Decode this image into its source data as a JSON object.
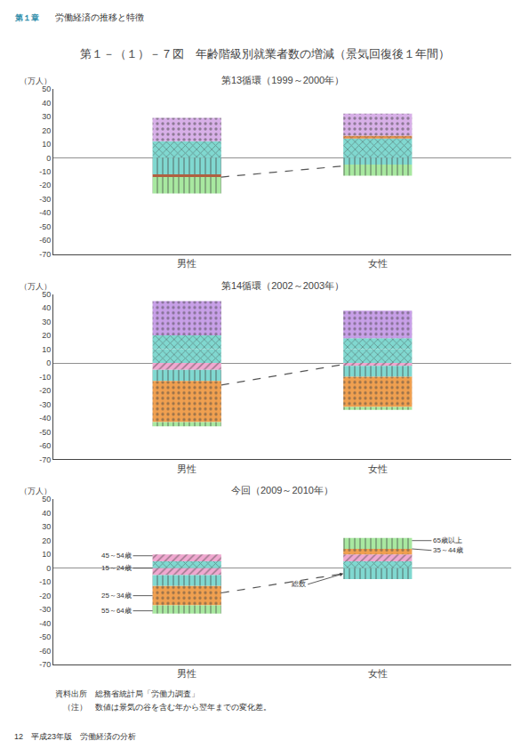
{
  "title": "第１－（１）－７図　年齢階級別就業者数の増減（景気回復後１年間）",
  "header": [
    "第１章",
    "労働経済の推移と特徴"
  ],
  "notes": [
    "資料出所　総務省統計局「労働力調査」",
    "　（注）　数値は景気の谷を含む年から翌年までの変化差。"
  ],
  "footer": "12　平成23年版　労働経済の分析",
  "chart_data": [
    {
      "type": "bar",
      "title": "第13循環（1999～2000年）",
      "ylabel": "（万人）",
      "stacked": true,
      "grid": false,
      "categories": [
        "男性",
        "女性"
      ],
      "ylim": [
        -70,
        50
      ],
      "yticks": [
        -70,
        -60,
        -50,
        -40,
        -30,
        -20,
        -10,
        0,
        10,
        20,
        30,
        40,
        50
      ],
      "series": [
        {
          "color": "#80d8d0",
          "marker": "crosshatch",
          "values": [
            12,
            14
          ]
        },
        {
          "color": "#e09050",
          "marker": "crosshatch",
          "values": [
            null,
            2
          ]
        },
        {
          "color": "#d8b0e8",
          "marker": "dots",
          "values": [
            17,
            16
          ]
        },
        {
          "color": "#80d8d0",
          "marker": "vertical",
          "values": [
            -12,
            -5
          ]
        },
        {
          "color": "#b06040",
          "values": [
            -2,
            null
          ]
        },
        {
          "color": "#a8e8a0",
          "marker": "vertical",
          "values": [
            -12,
            -8
          ]
        },
        {
          "type": "line",
          "line_style": "dashed",
          "color": "#555555",
          "values": [
            -14,
            -6
          ]
        }
      ]
    },
    {
      "type": "bar",
      "title": "第14循環（2002～2003年）",
      "ylabel": "（万人）",
      "stacked": true,
      "grid": false,
      "categories": [
        "男性",
        "女性"
      ],
      "ylim": [
        -70,
        50
      ],
      "yticks": [
        -70,
        -60,
        -50,
        -40,
        -30,
        -20,
        -10,
        0,
        10,
        20,
        30,
        40,
        50
      ],
      "series": [
        {
          "color": "#80d8d0",
          "marker": "crosshatch",
          "values": [
            10,
            10
          ]
        },
        {
          "color": "#80d8d0",
          "marker": "crosshatch",
          "values": [
            10,
            8
          ]
        },
        {
          "color": "#c8a0e8",
          "marker": "dots",
          "values": [
            25,
            20
          ]
        },
        {
          "color": "#f0a8d0",
          "marker": "diagonal",
          "values": [
            -5,
            -2
          ]
        },
        {
          "color": "#80d8d0",
          "marker": "vertical",
          "values": [
            -8,
            -8
          ]
        },
        {
          "color": "#f0a050",
          "marker": "dots",
          "values": [
            -30,
            -22
          ]
        },
        {
          "color": "#a8e8a0",
          "marker": "vertical",
          "values": [
            -3,
            -2
          ]
        },
        {
          "type": "line",
          "line_style": "dashed",
          "color": "#555555",
          "values": [
            -16,
            -1
          ]
        }
      ]
    },
    {
      "type": "bar",
      "title": "今回（2009～2010年）",
      "ylabel": "（万人）",
      "stacked": true,
      "grid": false,
      "categories": [
        "男性",
        "女性"
      ],
      "ylim": [
        -70,
        50
      ],
      "yticks": [
        -70,
        -60,
        -50,
        -40,
        -30,
        -20,
        -10,
        0,
        10,
        20,
        30,
        40,
        50
      ],
      "series": [
        {
          "color": "#80d8d0",
          "marker": "crosshatch",
          "values": [
            5,
            5
          ]
        },
        {
          "color": "#f0a8d0",
          "marker": "diagonal",
          "values": [
            5,
            5
          ]
        },
        {
          "color": "#f0a050",
          "marker": "dots",
          "values": [
            null,
            4
          ]
        },
        {
          "color": "#a8e8a0",
          "marker": "vertical",
          "values": [
            null,
            8
          ]
        },
        {
          "color": "#f0a8d0",
          "marker": "diagonal",
          "values": [
            -5,
            null
          ]
        },
        {
          "color": "#80d8d0",
          "marker": "vertical",
          "values": [
            -8,
            -8
          ]
        },
        {
          "color": "#f0a050",
          "marker": "dots",
          "values": [
            -14,
            null
          ]
        },
        {
          "color": "#a8e8a0",
          "marker": "vertical",
          "values": [
            -6,
            null
          ]
        },
        {
          "type": "line",
          "line_style": "dashed",
          "color": "#555555",
          "values": [
            -18,
            -4
          ]
        }
      ],
      "annotations": [
        {
          "text": "45～54歳",
          "x": "男性",
          "y": 9
        },
        {
          "text": "15～24歳",
          "x": "男性",
          "y": 0
        },
        {
          "text": "25～34歳",
          "x": "男性",
          "y": -20
        },
        {
          "text": "55～64歳",
          "x": "男性",
          "y": -31
        },
        {
          "text": "65歳以上",
          "x": "女性",
          "y": 20
        },
        {
          "text": "35～44歳",
          "x": "女性",
          "y": 14
        },
        {
          "text": "総数",
          "x": "女性",
          "y": -4
        }
      ]
    }
  ]
}
